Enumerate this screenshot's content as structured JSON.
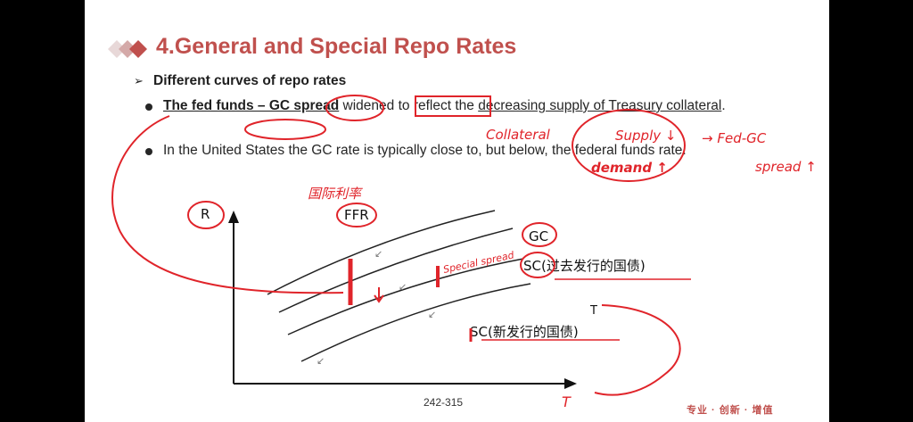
{
  "slide": {
    "title": "4.General and Special Repo Rates",
    "subheading": "Different curves of repo rates",
    "bullet1": {
      "bold_part": "The fed funds – GC spread",
      "mid_part": " widened",
      "rest_part": " to reflect the ",
      "underlined": "decreasing supply of Treasury collateral",
      "end": "."
    },
    "bullet2": "In the United States the GC rate is typically close to, but below, the federal funds rate."
  },
  "diagram": {
    "y_axis": "R",
    "ffr": "FFR",
    "gc": "GC",
    "sc_old": "SC(过去发行的国债)",
    "sc_new": "SC(新发行的国债)",
    "t_label": "T"
  },
  "handwriting": {
    "collateral": "Collateral",
    "supply": "Supply ↓",
    "demand": "demand ↑",
    "fed_gc": "→ Fed-GC",
    "spread": "spread ↑",
    "guoji": "国际利率",
    "special_spread": "Special spread",
    "t_bottom": "T"
  },
  "footer": {
    "page_number": "242-315",
    "brand": "专业 · 创新 · 增值"
  },
  "colors": {
    "title": "#c0504d",
    "pen": "#e0242a",
    "text": "#262626"
  }
}
